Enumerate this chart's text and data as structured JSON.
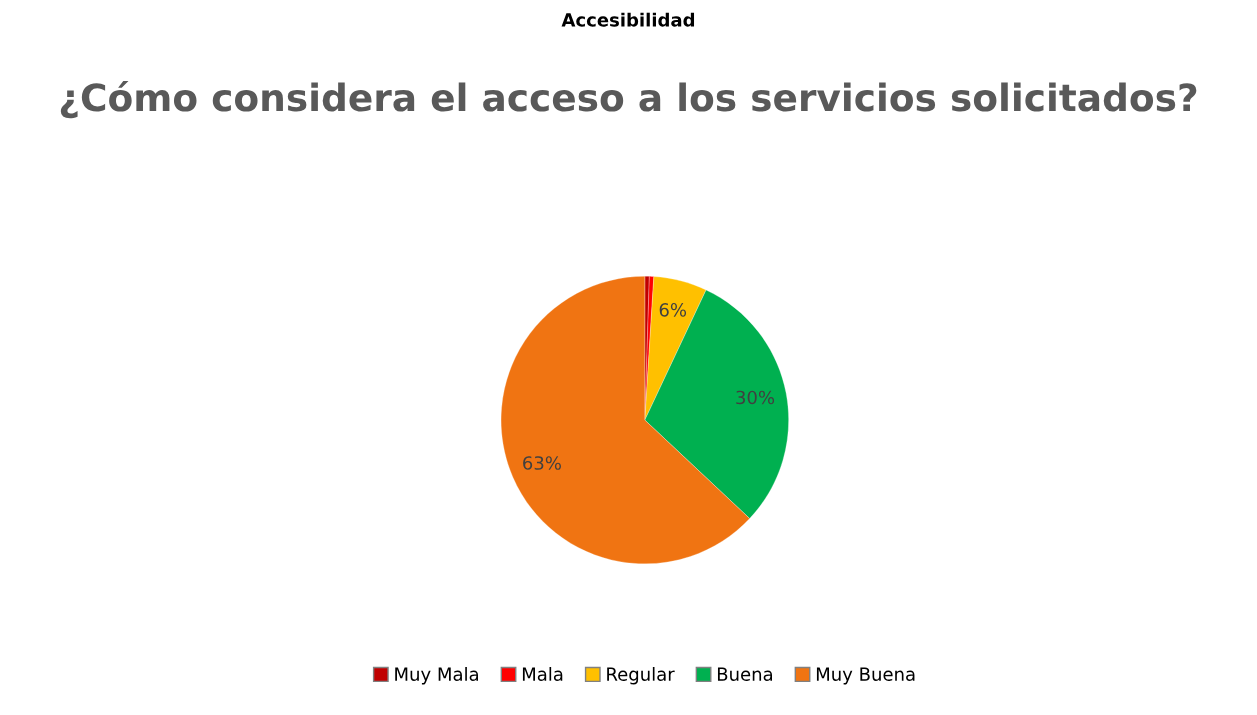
{
  "chart_data": {
    "type": "pie",
    "title": "¿Cómo considera el acceso a los servicios solicitados?",
    "annotations": [
      "Accesibilidad"
    ],
    "categories": [
      "Muy Mala",
      "Mala",
      "Regular",
      "Buena",
      "Muy Buena"
    ],
    "values": [
      0.5,
      0.5,
      6,
      30,
      63
    ],
    "value_labels": [
      null,
      null,
      "6%",
      "30%",
      "63%"
    ],
    "colors": [
      "#c00000",
      "#ff0000",
      "#ffc000",
      "#00b050",
      "#f07412"
    ],
    "legend": "bottom"
  }
}
